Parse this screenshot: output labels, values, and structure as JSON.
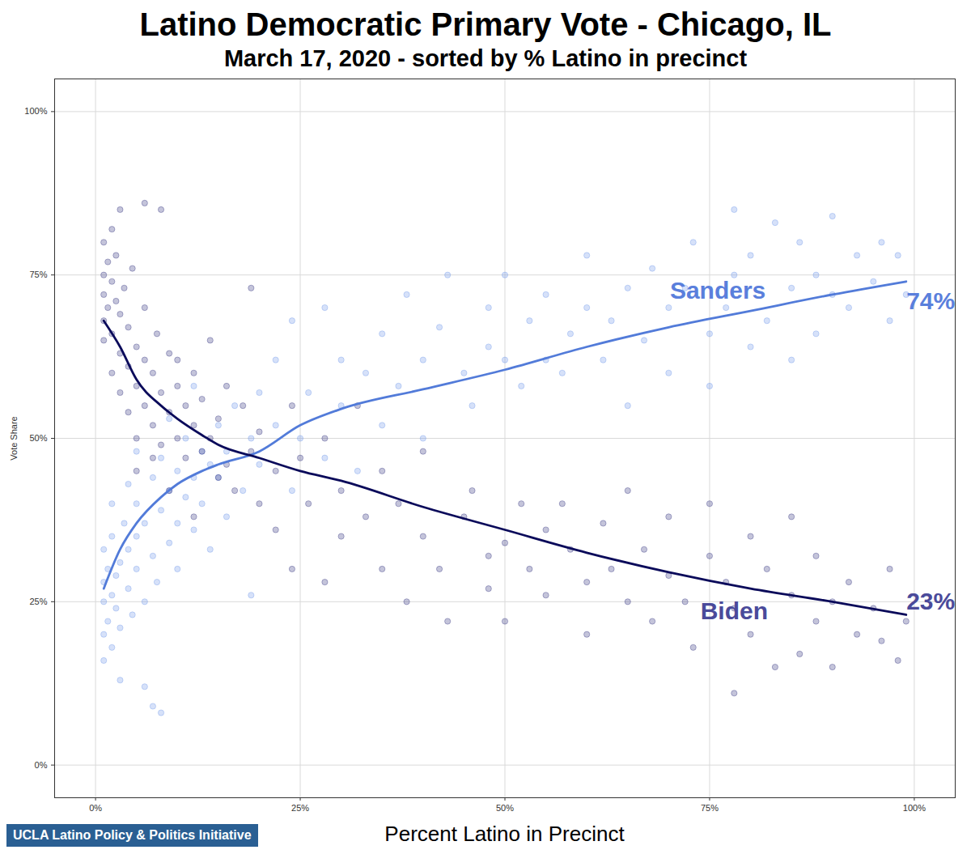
{
  "chart_data": {
    "type": "scatter",
    "title": "Latino Democratic Primary Vote - Chicago, IL",
    "subtitle": "March 17, 2020 - sorted by % Latino in precinct",
    "x_label": "Percent Latino in Precinct",
    "y_label": "Vote Share",
    "source": "UCLA Latino Policy & Politics Initiative",
    "xlim": [
      -5,
      105
    ],
    "ylim": [
      -5,
      105
    ],
    "xticks": [
      {
        "value": 0,
        "label": "0%"
      },
      {
        "value": 25,
        "label": "25%"
      },
      {
        "value": 50,
        "label": "50%"
      },
      {
        "value": 75,
        "label": "75%"
      },
      {
        "value": 100,
        "label": "100%"
      }
    ],
    "yticks": [
      {
        "value": 0,
        "label": "0%"
      },
      {
        "value": 25,
        "label": "25%"
      },
      {
        "value": 50,
        "label": "50%"
      },
      {
        "value": 75,
        "label": "75%"
      },
      {
        "value": 100,
        "label": "100%"
      }
    ],
    "grid": true,
    "series": [
      {
        "name": "Sanders",
        "type": "scatter",
        "color": "#6b95e8",
        "x": [
          1,
          1,
          1,
          1,
          1,
          1.5,
          1.5,
          2,
          2,
          2,
          2,
          2.5,
          2.5,
          3,
          3,
          3,
          3.5,
          4,
          4,
          4,
          4.5,
          5,
          5,
          5,
          5,
          6,
          6,
          6,
          7,
          7,
          7,
          7.5,
          8,
          8,
          8,
          9,
          9,
          9,
          10,
          10,
          10,
          11,
          11,
          12,
          12,
          12,
          13,
          13,
          14,
          14,
          15,
          15,
          16,
          16,
          17,
          18,
          19,
          19,
          20,
          20,
          22,
          22,
          24,
          24,
          25,
          26,
          28,
          28,
          30,
          30,
          32,
          33,
          35,
          35,
          37,
          38,
          40,
          40,
          42,
          43,
          45,
          46,
          48,
          48,
          50,
          50,
          52,
          53,
          55,
          55,
          57,
          58,
          60,
          60,
          62,
          63,
          65,
          65,
          67,
          68,
          70,
          70,
          72,
          73,
          75,
          75,
          77,
          78,
          78,
          80,
          80,
          82,
          83,
          85,
          85,
          86,
          88,
          88,
          90,
          90,
          92,
          93,
          95,
          96,
          97,
          98,
          99
        ],
        "values": [
          20,
          25,
          28,
          33,
          16,
          22,
          30,
          26,
          18,
          35,
          40,
          24,
          29,
          31,
          21,
          13,
          37,
          27,
          33,
          43,
          23,
          35,
          40,
          30,
          48,
          25,
          37,
          12,
          32,
          44,
          9,
          28,
          39,
          47,
          8,
          34,
          42,
          53,
          37,
          45,
          30,
          41,
          50,
          36,
          44,
          58,
          40,
          48,
          33,
          46,
          44,
          52,
          38,
          48,
          55,
          42,
          26,
          50,
          57,
          46,
          52,
          62,
          42,
          68,
          50,
          57,
          47,
          70,
          55,
          62,
          45,
          60,
          52,
          66,
          58,
          72,
          62,
          50,
          67,
          75,
          60,
          55,
          64,
          70,
          62,
          75,
          58,
          68,
          72,
          62,
          60,
          66,
          70,
          78,
          62,
          68,
          73,
          55,
          65,
          76,
          70,
          60,
          73,
          80,
          66,
          58,
          70,
          85,
          75,
          64,
          78,
          68,
          83,
          73,
          62,
          80,
          75,
          66,
          72,
          84,
          70,
          78,
          74,
          80,
          68,
          78,
          72
        ]
      },
      {
        "name": "Biden",
        "type": "scatter",
        "color": "#2c2c7a",
        "x": [
          1,
          1,
          1,
          1,
          1,
          1.5,
          1.5,
          2,
          2,
          2,
          2,
          2.5,
          2.5,
          3,
          3,
          3,
          3,
          3.5,
          4,
          4,
          4,
          4.5,
          5,
          5,
          5,
          5,
          6,
          6,
          6,
          6,
          7,
          7,
          7,
          7.5,
          8,
          8,
          8,
          9,
          9,
          9,
          10,
          10,
          10,
          11,
          11,
          12,
          12,
          12,
          13,
          13,
          14,
          14,
          15,
          15,
          16,
          16,
          17,
          18,
          19,
          19,
          20,
          20,
          22,
          22,
          24,
          24,
          25,
          26,
          28,
          28,
          30,
          30,
          32,
          33,
          35,
          35,
          37,
          38,
          40,
          40,
          42,
          43,
          45,
          46,
          48,
          48,
          50,
          50,
          52,
          53,
          55,
          55,
          57,
          58,
          60,
          60,
          62,
          63,
          65,
          65,
          67,
          68,
          70,
          70,
          72,
          73,
          75,
          75,
          77,
          78,
          78,
          80,
          80,
          82,
          83,
          85,
          85,
          86,
          88,
          88,
          90,
          90,
          92,
          93,
          95,
          96,
          97,
          98,
          99
        ],
        "values": [
          75,
          72,
          68,
          80,
          65,
          77,
          70,
          82,
          74,
          66,
          60,
          71,
          78,
          69,
          63,
          85,
          57,
          73,
          67,
          61,
          54,
          76,
          64,
          58,
          50,
          45,
          70,
          62,
          55,
          86,
          60,
          52,
          47,
          66,
          57,
          49,
          85,
          63,
          54,
          42,
          58,
          50,
          62,
          55,
          47,
          60,
          52,
          38,
          56,
          48,
          65,
          50,
          53,
          44,
          58,
          46,
          42,
          55,
          73,
          48,
          40,
          51,
          45,
          36,
          55,
          30,
          47,
          40,
          50,
          28,
          42,
          35,
          55,
          38,
          45,
          30,
          40,
          25,
          35,
          48,
          30,
          22,
          38,
          42,
          32,
          27,
          34,
          22,
          40,
          30,
          26,
          36,
          40,
          33,
          28,
          20,
          37,
          30,
          25,
          42,
          33,
          22,
          29,
          38,
          25,
          18,
          32,
          40,
          28,
          11,
          24,
          35,
          20,
          30,
          15,
          26,
          38,
          17,
          22,
          32,
          25,
          15,
          28,
          20,
          24,
          19,
          30,
          16,
          22
        ]
      },
      {
        "name": "Sanders",
        "type": "line",
        "color": "#527bd9",
        "x": [
          1,
          3,
          5,
          8,
          10,
          13,
          15,
          20,
          25,
          30,
          40,
          50,
          60,
          70,
          80,
          90,
          99
        ],
        "values": [
          27,
          33,
          37,
          41,
          43,
          45,
          46,
          48,
          52,
          54.5,
          57.5,
          60.5,
          64,
          67,
          69.5,
          72,
          74
        ]
      },
      {
        "name": "Biden",
        "type": "line",
        "color": "#0a0a5a",
        "x": [
          1,
          3,
          5,
          8,
          10,
          13,
          15,
          20,
          25,
          30,
          40,
          50,
          60,
          70,
          80,
          90,
          99
        ],
        "values": [
          68,
          64,
          59,
          55,
          53,
          50.5,
          49,
          47,
          45,
          43.5,
          39.5,
          36,
          32.5,
          29.5,
          27,
          25,
          23
        ]
      }
    ],
    "annotations": [
      {
        "text": "Sanders",
        "x": 76,
        "y": 72.5,
        "color": "#5a7fdc"
      },
      {
        "text": "74%",
        "x": 102,
        "y": 71,
        "color": "#5a7fdc"
      },
      {
        "text": "Biden",
        "x": 78,
        "y": 23.5,
        "color": "#4a4a9a"
      },
      {
        "text": "23%",
        "x": 102,
        "y": 25,
        "color": "#4a4a9a"
      }
    ]
  }
}
